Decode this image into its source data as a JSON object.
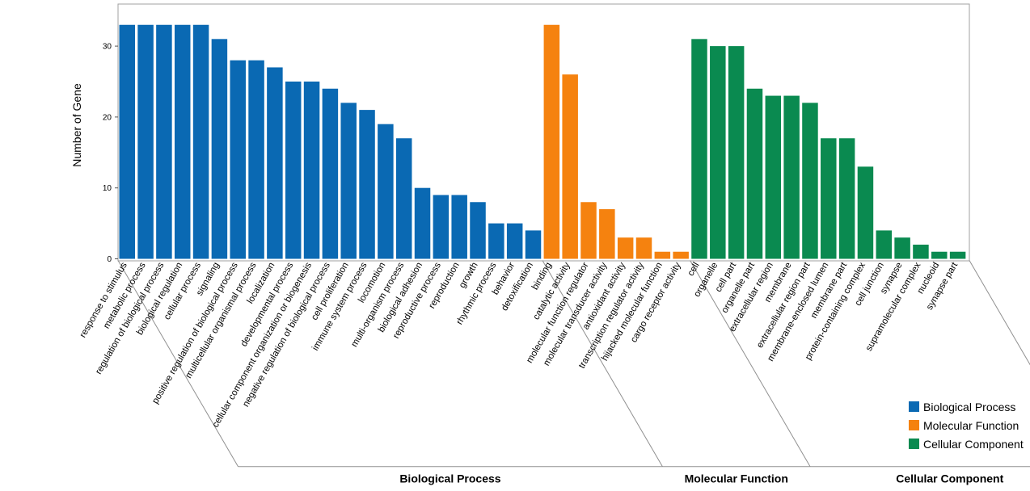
{
  "chart_data": {
    "type": "bar",
    "ylabel": "Number of Gene",
    "xlabel": "",
    "ylim": [
      0,
      35
    ],
    "yticks": [
      0,
      10,
      20,
      30
    ],
    "grid": false,
    "legend_position": "bottom-right",
    "series": [
      {
        "name": "Biological Process",
        "color": "#0a69b3",
        "categories": [
          "response to stimulus",
          "metabolic process",
          "regulation of biological process",
          "biological regulation",
          "cellular process",
          "signaling",
          "positive regulation of biological process",
          "multicellular organismal process",
          "localization",
          "developmental process",
          "cellular component organization or biogenesis",
          "negative regulation of biological process",
          "cell proliferation",
          "immune system process",
          "locomotion",
          "multi-organism process",
          "biological adhesion",
          "reproductive process",
          "reproduction",
          "growth",
          "rhythmic process",
          "behavior",
          "detoxification"
        ],
        "values": [
          33,
          33,
          33,
          33,
          33,
          31,
          28,
          28,
          27,
          25,
          25,
          24,
          22,
          21,
          19,
          17,
          10,
          9,
          9,
          8,
          5,
          5,
          4
        ]
      },
      {
        "name": "Molecular Function",
        "color": "#f5820f",
        "categories": [
          "binding",
          "catalytic activity",
          "molecular function regulator",
          "molecular transducer activity",
          "antioxidant activity",
          "transcription regulator activity",
          "hijacked molecular function",
          "cargo receptor activity"
        ],
        "values": [
          33,
          26,
          8,
          7,
          3,
          3,
          1,
          1
        ]
      },
      {
        "name": "Cellular Component",
        "color": "#0a8a50",
        "categories": [
          "cell",
          "organelle",
          "cell part",
          "organelle part",
          "extracellular region",
          "membrane",
          "extracellular region part",
          "membrane-enclosed lumen",
          "membrane part",
          "protein-containing complex",
          "cell junction",
          "synapse",
          "supramolecular complex",
          "nucleoid",
          "synapse part"
        ],
        "values": [
          31,
          30,
          30,
          24,
          23,
          23,
          22,
          17,
          17,
          13,
          4,
          3,
          2,
          1,
          1
        ]
      }
    ]
  }
}
